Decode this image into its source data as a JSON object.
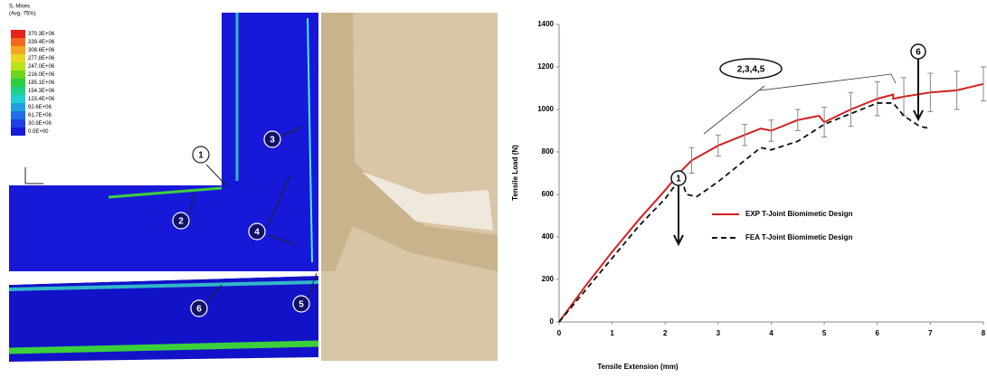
{
  "fea_legend": {
    "title": "S, Mises",
    "subtitle": "(Avg: 75%)",
    "labels": [
      "370.3E+06",
      "339.4E+06",
      "308.6E+06",
      "277.8E+06",
      "247.0E+06",
      "216.0E+06",
      "185.1E+06",
      "154.3E+06",
      "123.4E+06",
      "92.6E+06",
      "61.7E+06",
      "30.9E+06",
      "0.0E+00"
    ]
  },
  "callouts": [
    "1",
    "2",
    "3",
    "4",
    "5",
    "6"
  ],
  "chart_data": {
    "type": "line",
    "x_label": "Tensile Extension (mm)",
    "y_label": "Tensile Load (N)",
    "xlim": [
      0,
      8
    ],
    "xticks": [
      0,
      1,
      2,
      3,
      4,
      5,
      6,
      7,
      8
    ],
    "ylim": [
      0,
      1400
    ],
    "yticks": [
      0,
      200,
      400,
      600,
      800,
      1000,
      1200,
      1400
    ],
    "annotations": [
      "1",
      "2,3,4,5",
      "6"
    ],
    "series": [
      {
        "name": "EXP T-Joint Biomimetic Design",
        "color": "#d42020",
        "dash": false,
        "x": [
          0,
          0.5,
          1,
          1.5,
          2,
          2.3,
          2.5,
          3,
          3.5,
          3.8,
          4,
          4.5,
          4.9,
          5,
          5.5,
          6,
          6.3,
          6.3,
          6.5,
          7,
          7.5,
          8
        ],
        "values": [
          0,
          170,
          330,
          480,
          620,
          710,
          760,
          830,
          880,
          910,
          900,
          950,
          970,
          940,
          1000,
          1050,
          1070,
          1050,
          1060,
          1080,
          1090,
          1120
        ],
        "errors": [
          null,
          null,
          null,
          null,
          null,
          null,
          60,
          50,
          50,
          null,
          50,
          50,
          null,
          70,
          80,
          80,
          null,
          null,
          90,
          90,
          90,
          80
        ]
      },
      {
        "name": "FEA T-Joint Biomimetic Design",
        "color": "#111111",
        "dash": true,
        "x": [
          0,
          0.5,
          1,
          1.5,
          2,
          2.3,
          2.4,
          2.6,
          3,
          3.5,
          3.8,
          4,
          4.5,
          5,
          5.5,
          6,
          6.3,
          6.5,
          6.8,
          7
        ],
        "values": [
          0,
          150,
          300,
          450,
          580,
          680,
          600,
          590,
          660,
          760,
          820,
          810,
          850,
          930,
          980,
          1030,
          1030,
          970,
          920,
          910
        ]
      }
    ]
  }
}
